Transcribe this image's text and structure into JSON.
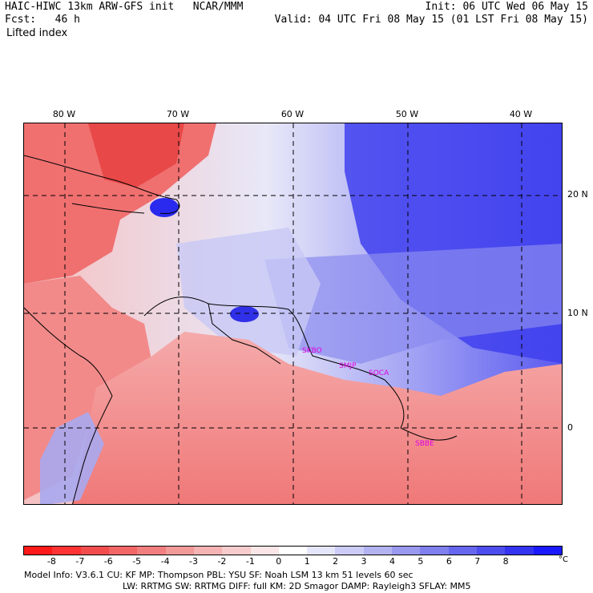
{
  "header": {
    "left_line1": "HAIC-HIWC 13km ARW-GFS init   NCAR/MMM",
    "left_line2": "Fcst:   46 h",
    "left_line3": "Lifted index",
    "right_line1": "Init: 06 UTC Wed 06 May 15",
    "right_line2": "Valid: 04 UTC Fri 08 May 15 (01 LST Fri 08 May 15)"
  },
  "map": {
    "longitude_labels": [
      "80 W",
      "70 W",
      "60 W",
      "50 W",
      "40 W"
    ],
    "latitude_labels": [
      "20 N",
      "10 N",
      "0"
    ],
    "stations": [
      "SKBO",
      "SMJP",
      "SOCA",
      "SBBE"
    ],
    "note_colors": {
      "coast": "#000000",
      "grid": "#000000"
    }
  },
  "colorbar": {
    "labels": [
      "-8",
      "-7",
      "-6",
      "-5",
      "-4",
      "-3",
      "-2",
      "-1",
      "0",
      "1",
      "2",
      "3",
      "4",
      "5",
      "6",
      "7",
      "8"
    ],
    "unit": "°C",
    "colors": [
      "#ff1a1a",
      "#ff3333",
      "#f24d4d",
      "#f26666",
      "#f27f7f",
      "#f29999",
      "#f5b3b3",
      "#f7cccc",
      "#fae6e6",
      "#ffffff",
      "#e6e6fa",
      "#ccccf7",
      "#b3b3f2",
      "#9999f0",
      "#7f7fee",
      "#6666ee",
      "#4d4dee",
      "#3333f0",
      "#1a1aff"
    ]
  },
  "footer": {
    "line1": "Model Info: V3.6.1     CU: KF      MP: Thompson     PBL: YSU       SF: Noah LSM     13 km    51 levels   60 sec",
    "line2": "LW: RRTMG    SW: RRTMG   DIFF: full    KM: 2D Smagor  DAMP: Rayleigh3   SFLAY: MM5"
  }
}
